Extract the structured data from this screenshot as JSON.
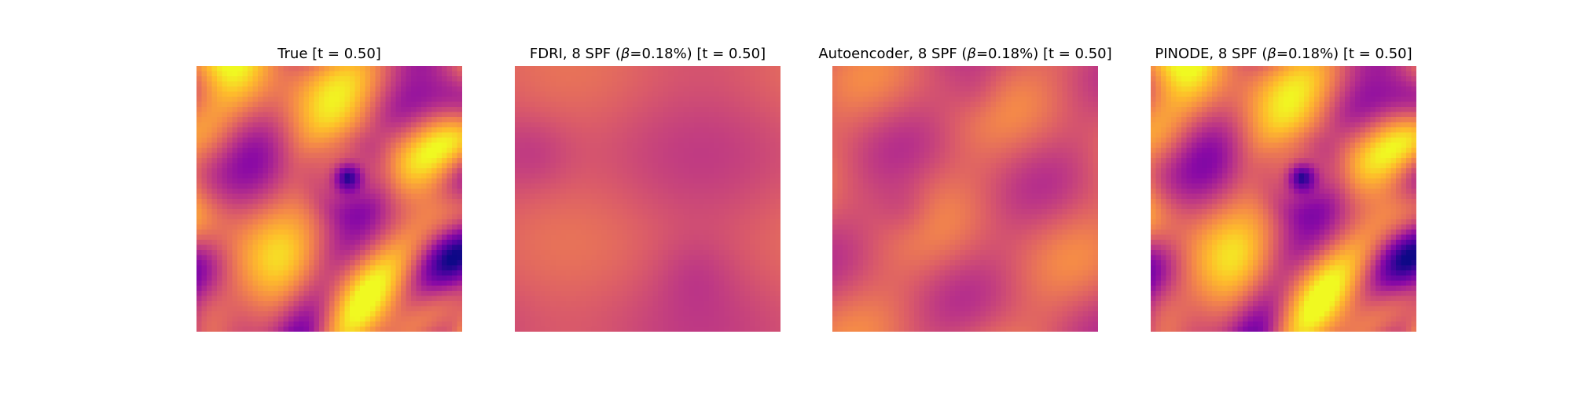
{
  "figure": {
    "colormap": "plasma",
    "background": "#ffffff"
  },
  "chart_data": [
    {
      "type": "heatmap",
      "title": "True [t = 0.50]",
      "title_parts": {
        "prefix": "True [t = 0.50]",
        "beta": "",
        "suffix": ""
      },
      "axes": "off",
      "grid": false,
      "value_range": [
        0.0,
        1.0
      ],
      "field": "true_flow"
    },
    {
      "type": "heatmap",
      "title": "FDRI, 8 SPF (β=0.18%) [t = 0.50]",
      "title_parts": {
        "prefix": "FDRI, 8 SPF (",
        "beta": "β",
        "suffix": "=0.18%) [t = 0.50]"
      },
      "axes": "off",
      "grid": false,
      "value_range": [
        0.0,
        1.0
      ],
      "field": "fdri_reconstruction"
    },
    {
      "type": "heatmap",
      "title": "Autoencoder, 8 SPF (β=0.18%) [t = 0.50]",
      "title_parts": {
        "prefix": "Autoencoder, 8 SPF (",
        "beta": "β",
        "suffix": "=0.18%) [t = 0.50]"
      },
      "axes": "off",
      "grid": false,
      "value_range": [
        0.0,
        1.0
      ],
      "field": "autoencoder_reconstruction"
    },
    {
      "type": "heatmap",
      "title": "PINODE, 8 SPF (β=0.18%) [t = 0.50]",
      "title_parts": {
        "prefix": "PINODE, 8 SPF (",
        "beta": "β",
        "suffix": "=0.18%) [t = 0.50]"
      },
      "axes": "off",
      "grid": false,
      "value_range": [
        0.0,
        1.0
      ],
      "field": "pinode_reconstruction"
    }
  ]
}
